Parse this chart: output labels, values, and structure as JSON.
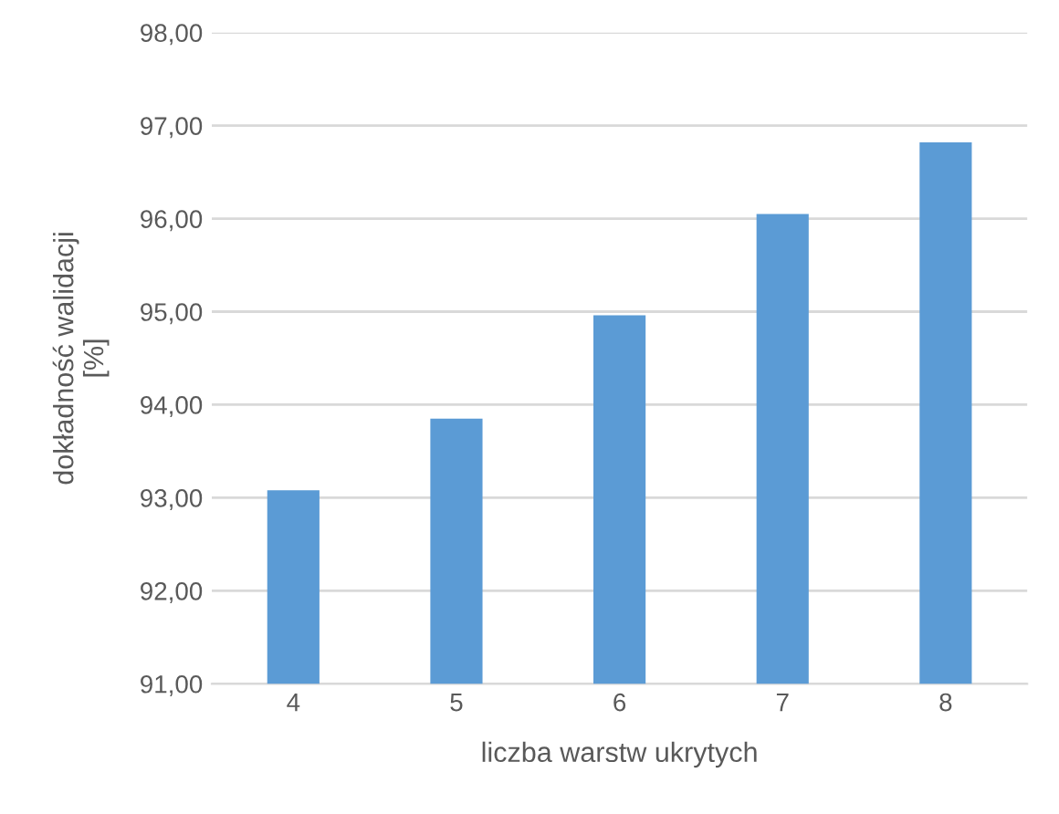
{
  "chart_data": {
    "type": "bar",
    "xlabel": "liczba warstw ukrytych",
    "ylabel": "dokładność walidacji\n[%]",
    "categories": [
      "4",
      "5",
      "6",
      "7",
      "8"
    ],
    "values": [
      93.08,
      93.85,
      94.96,
      96.05,
      96.82
    ],
    "color": "#5b9bd5",
    "ylim": [
      91,
      98
    ],
    "yticks": [
      {
        "value": 91,
        "label": "91,00"
      },
      {
        "value": 92,
        "label": "92,00"
      },
      {
        "value": 93,
        "label": "93,00"
      },
      {
        "value": 94,
        "label": "94,00"
      },
      {
        "value": 95,
        "label": "95,00"
      },
      {
        "value": 96,
        "label": "96,00"
      },
      {
        "value": 97,
        "label": "97,00"
      },
      {
        "value": 98,
        "label": "98,00"
      }
    ],
    "grid": "y"
  }
}
